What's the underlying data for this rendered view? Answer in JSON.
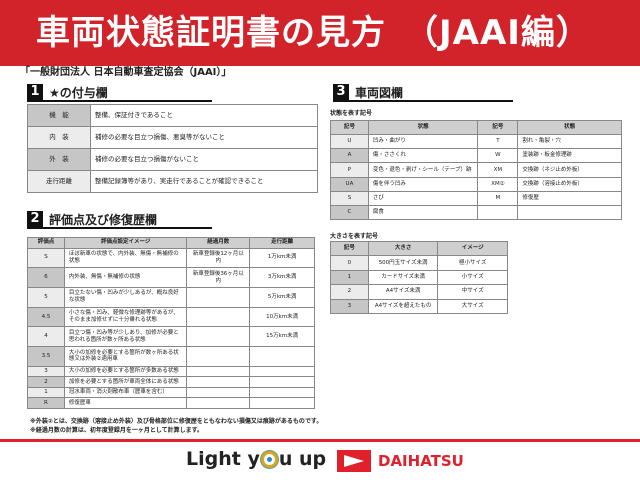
{
  "title": "車両状態証明書の見方　（JAAI編）",
  "subtitle": "「一般財団法人 日本自動車査定協会（JAAI）」",
  "section1": {
    "num": "1",
    "title": "★の付与欄",
    "rows": [
      {
        "k": "機　能",
        "v": "整備、保証付きであること"
      },
      {
        "k": "内　装",
        "v": "補修の必要な目立つ損傷、悪臭等がないこと"
      },
      {
        "k": "外　装",
        "v": "補修の必要な目立つ損傷がないこと"
      },
      {
        "k": "走行距離",
        "v": "整備記録簿等があり、実走行であることが確認できること"
      }
    ]
  },
  "section2": {
    "num": "2",
    "title": "評価点及び修復歴欄",
    "headers": [
      "評価点",
      "評価点設定イメージ",
      "経過月数",
      "走行距離"
    ],
    "rows": [
      [
        "S",
        "ほぼ新車の状態で、内外装、無傷・無補修の状態",
        "新車登録後12ヶ月以内",
        "1万km未満"
      ],
      [
        "6",
        "内外装、無傷・無補修の状態",
        "新車登録後36ヶ月以内",
        "3万km未満"
      ],
      [
        "5",
        "目立たない傷・凹みが少しあるが、概ね良好な状態",
        "",
        "5万km未満"
      ],
      [
        "4.5",
        "小さな傷・凹み、軽微な修理跡等があるが、そのまま加修せずに十分乗れる状態",
        "",
        "10万km未満"
      ],
      [
        "4",
        "目立つ傷・凹み等が少しあり、加修が必要と思われる箇所が数ヶ所ある状態",
        "",
        "15万km未満"
      ],
      [
        "3.5",
        "大小の加修を必要とする箇所が数ヶ所ある状態又は外装②適用車",
        "",
        ""
      ],
      [
        "3",
        "大小の加修を必要とする箇所が多数ある状態",
        "",
        ""
      ],
      [
        "2",
        "加修を必要とする箇所が車両全体にある状態",
        "",
        ""
      ],
      [
        "1",
        "冠水車両・消火剤散布車（歴車を含む）",
        "",
        ""
      ],
      [
        "R",
        "修復歴車",
        "",
        ""
      ]
    ]
  },
  "notes": [
    "※外装②とは、交換跡（溶接止め外装）及び骨格部位に修復歴をともなわない損傷又は痕跡があるものです。",
    "※経過月数の計算は、初年度登録月を一ヶ月として計算します。"
  ],
  "section3": {
    "num": "3",
    "title": "車両図欄",
    "state_label": "状態を表す記号",
    "state_headers": [
      "記号",
      "状態",
      "記号",
      "状態"
    ],
    "state_rows": [
      [
        "U",
        "凹み・曲がり",
        "T",
        "割れ・亀裂・穴"
      ],
      [
        "A",
        "傷・ささくれ",
        "W",
        "塗装跡・板金修理跡"
      ],
      [
        "P",
        "変色・退色・剥げ・シール（テープ）跡",
        "XM",
        "交換跡（ネジ止め外板）"
      ],
      [
        "UA",
        "傷を伴う凹み",
        "XM②",
        "交換跡（溶接止め外板）"
      ],
      [
        "S",
        "さび",
        "M",
        "修復歴"
      ],
      [
        "C",
        "腐食",
        "",
        ""
      ]
    ],
    "size_label": "大きさを表す記号",
    "size_headers": [
      "記号",
      "大きさ",
      "イメージ"
    ],
    "size_rows": [
      [
        "0",
        "500円玉サイズ未満",
        "極小サイズ"
      ],
      [
        "1",
        "カードサイズ未満",
        "小サイズ"
      ],
      [
        "2",
        "A4サイズ未満",
        "中サイズ"
      ],
      [
        "3",
        "A4サイズを超えたもの",
        "大サイズ"
      ]
    ]
  },
  "footer": {
    "slogan_a": "Light y",
    "slogan_b": "u up",
    "brand": "DAIHATSU"
  },
  "colors": {
    "accent": "#d2232a"
  }
}
